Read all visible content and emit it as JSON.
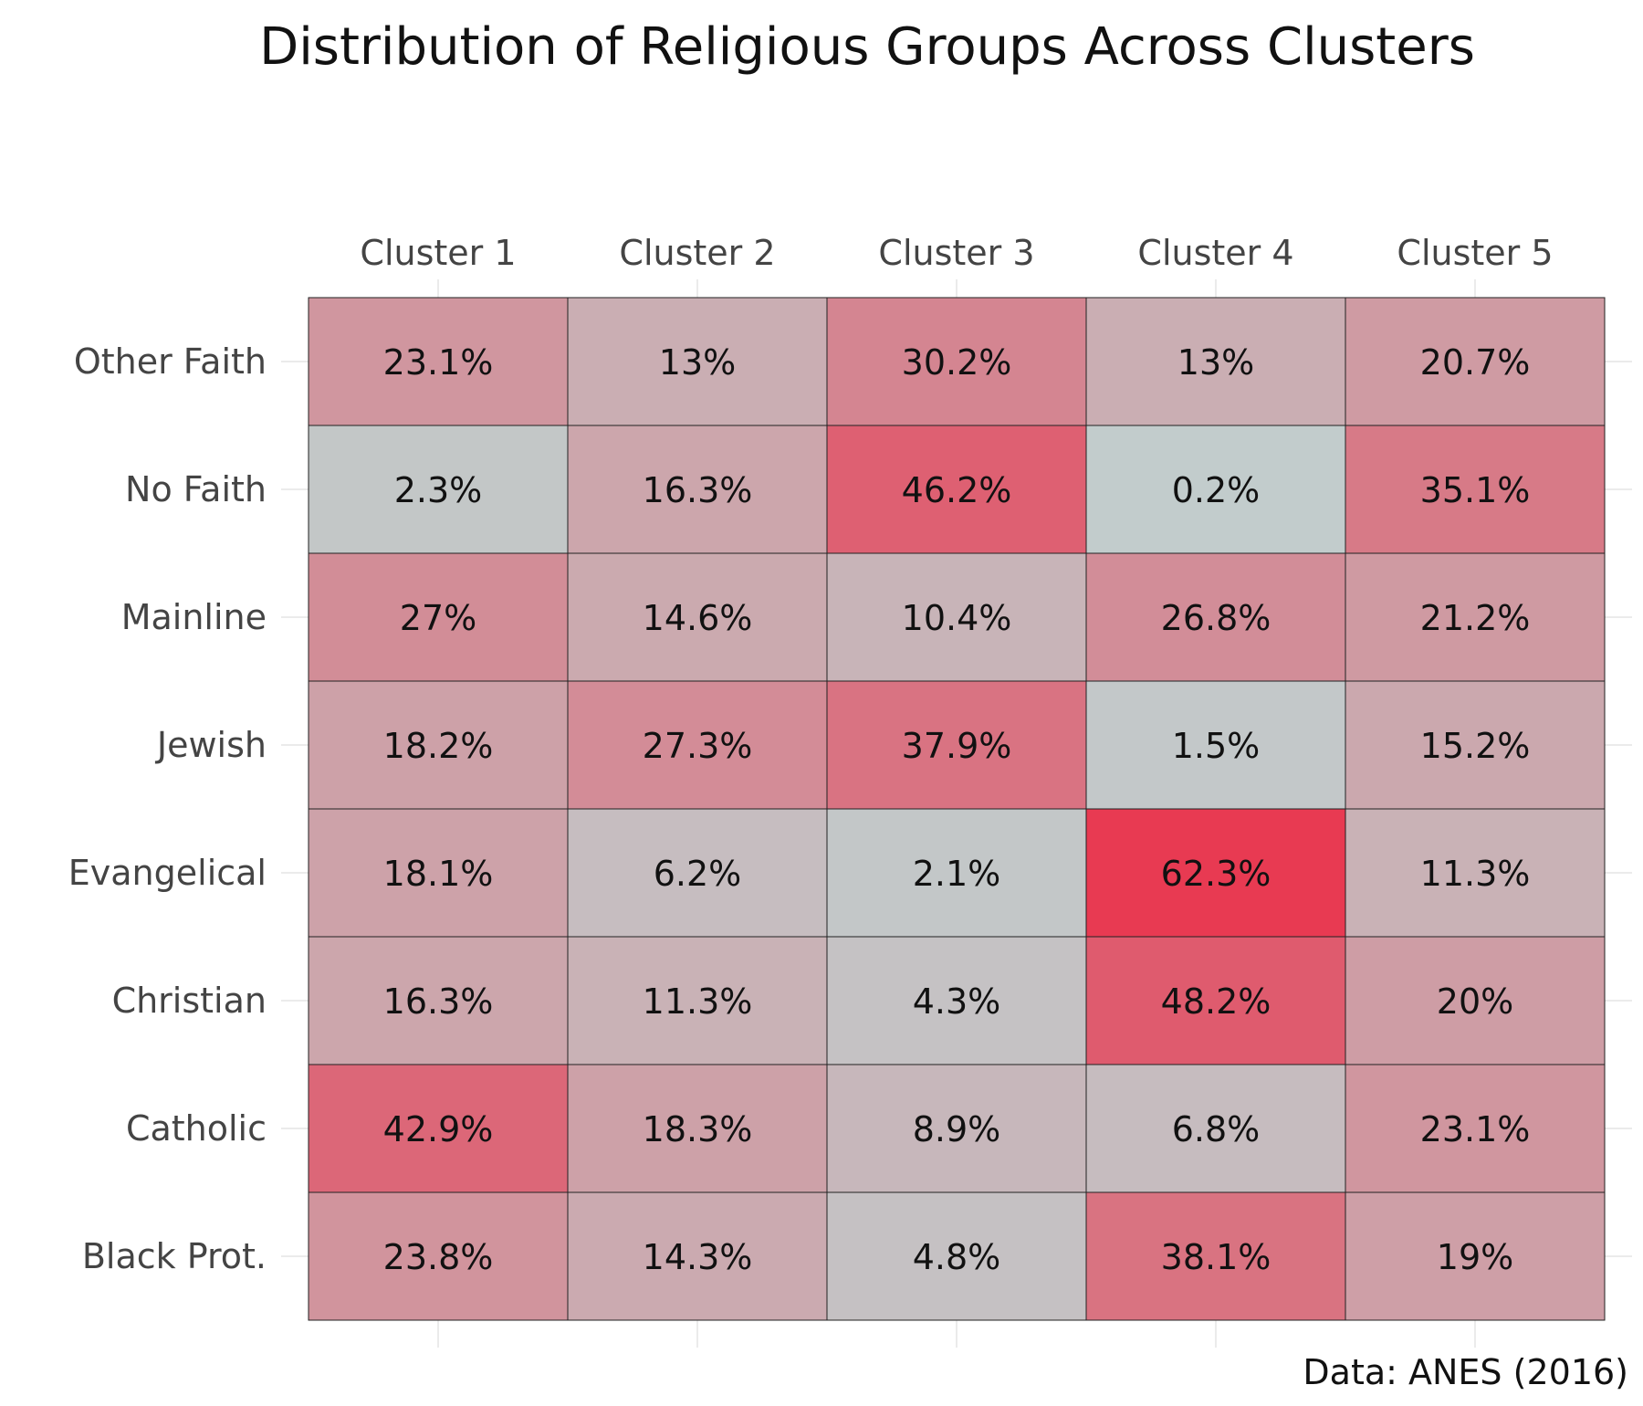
{
  "chart_data": {
    "type": "heatmap",
    "title": "Distribution of Religious Groups Across Clusters",
    "caption": "Data: ANES (2016)",
    "columns": [
      "Cluster 1",
      "Cluster 2",
      "Cluster 3",
      "Cluster 4",
      "Cluster 5"
    ],
    "rows": [
      "Other Faith",
      "No Faith",
      "Mainline",
      "Jewish",
      "Evangelical",
      "Christian",
      "Catholic",
      "Black Prot."
    ],
    "values": [
      [
        23.1,
        13,
        30.2,
        13,
        20.7
      ],
      [
        2.3,
        16.3,
        46.2,
        0.2,
        35.1
      ],
      [
        27,
        14.6,
        10.4,
        26.8,
        21.2
      ],
      [
        18.2,
        27.3,
        37.9,
        1.5,
        15.2
      ],
      [
        18.1,
        6.2,
        2.1,
        62.3,
        11.3
      ],
      [
        16.3,
        11.3,
        4.3,
        48.2,
        20
      ],
      [
        42.9,
        18.3,
        8.9,
        6.8,
        23.1
      ],
      [
        23.8,
        14.3,
        4.8,
        38.1,
        19
      ]
    ],
    "labels": [
      [
        "23.1%",
        "13%",
        "30.2%",
        "13%",
        "20.7%"
      ],
      [
        "2.3%",
        "16.3%",
        "46.2%",
        "0.2%",
        "35.1%"
      ],
      [
        "27%",
        "14.6%",
        "10.4%",
        "26.8%",
        "21.2%"
      ],
      [
        "18.2%",
        "27.3%",
        "37.9%",
        "1.5%",
        "15.2%"
      ],
      [
        "18.1%",
        "6.2%",
        "2.1%",
        "62.3%",
        "11.3%"
      ],
      [
        "16.3%",
        "11.3%",
        "4.3%",
        "48.2%",
        "20%"
      ],
      [
        "42.9%",
        "18.3%",
        "8.9%",
        "6.8%",
        "23.1%"
      ],
      [
        "23.8%",
        "14.3%",
        "4.8%",
        "38.1%",
        "19%"
      ]
    ],
    "color_low": "#c2cccc",
    "color_high": "#e83a52",
    "value_range": [
      0,
      62.3
    ],
    "x_axis_position": "top",
    "grid": true
  }
}
